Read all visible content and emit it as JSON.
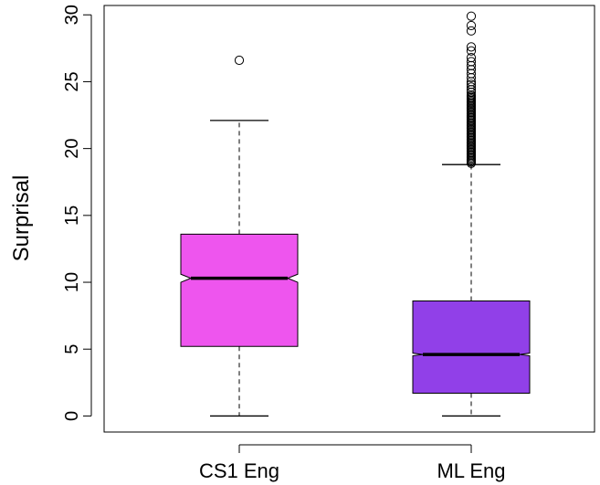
{
  "chart_data": {
    "type": "boxplot",
    "notched": true,
    "title": "",
    "xlabel": "",
    "ylabel": "Surprisal",
    "ylim": [
      -1.2,
      30.7
    ],
    "yticks": [
      0,
      5,
      10,
      15,
      20,
      25,
      30
    ],
    "categories": [
      "CS1 Eng",
      "ML Eng"
    ],
    "boxes": [
      {
        "name": "CS1 Eng",
        "color": "#ee55ee",
        "whisker_low": 0,
        "q1": 5.2,
        "median": 10.3,
        "q3": 13.6,
        "whisker_high": 22.1,
        "notch_low": 10.0,
        "notch_high": 10.6,
        "outliers": [
          26.6
        ]
      },
      {
        "name": "ML Eng",
        "color": "#9140e8",
        "whisker_low": 0,
        "q1": 1.7,
        "median": 4.6,
        "q3": 8.6,
        "whisker_high": 18.8,
        "notch_low": 4.5,
        "notch_high": 4.7,
        "outliers": [
          18.9,
          19.0,
          19.1,
          19.2,
          19.3,
          19.4,
          19.5,
          19.6,
          19.7,
          19.8,
          19.9,
          20.0,
          20.1,
          20.2,
          20.3,
          20.4,
          20.5,
          20.6,
          20.7,
          20.8,
          20.9,
          21.0,
          21.1,
          21.2,
          21.3,
          21.4,
          21.5,
          21.6,
          21.7,
          21.8,
          21.9,
          22.0,
          22.1,
          22.2,
          22.3,
          22.4,
          22.5,
          22.6,
          22.7,
          22.8,
          22.9,
          23.0,
          23.1,
          23.2,
          23.3,
          23.4,
          23.5,
          23.6,
          23.7,
          23.8,
          23.9,
          24.0,
          24.2,
          24.4,
          24.6,
          24.8,
          25.0,
          25.3,
          25.6,
          25.9,
          26.2,
          26.5,
          26.8,
          27.3,
          27.6,
          28.8,
          29.2,
          29.9
        ]
      }
    ]
  }
}
